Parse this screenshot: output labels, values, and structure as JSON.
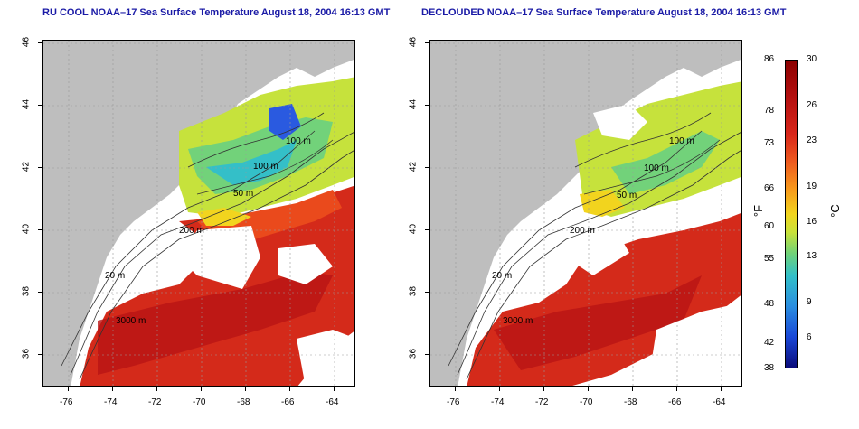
{
  "titles": {
    "left": "RU COOL NOAA–17 Sea Surface Temperature August 18, 2004 16:13 GMT",
    "right": "DECLOUDED NOAA–17 Sea Surface Temperature August 18, 2004 16:13 GMT"
  },
  "axes": {
    "x_ticks": [
      "-76",
      "-74",
      "-72",
      "-70",
      "-68",
      "-66",
      "-64"
    ],
    "y_ticks": [
      "46",
      "44",
      "42",
      "40",
      "38",
      "36"
    ]
  },
  "contours": {
    "c100a": "100 m",
    "c100b": "100 m",
    "c50": "50 m",
    "c200": "200 m",
    "c20": "20 m",
    "c3000": "3000 m"
  },
  "colorbar": {
    "fahrenheit_ticks": [
      "86",
      "78",
      "73",
      "66",
      "60",
      "55",
      "48",
      "42",
      "38"
    ],
    "celsius_ticks": [
      "30",
      "26",
      "23",
      "19",
      "16",
      "13",
      "9",
      "6"
    ],
    "unit_f": "°F",
    "unit_c": "°C"
  },
  "colors": {
    "land": "#bebebe",
    "cloud": "#ffffff",
    "warm": "#d42a1a",
    "cold": "#2a5ae0",
    "title": "#1a1aa6"
  }
}
